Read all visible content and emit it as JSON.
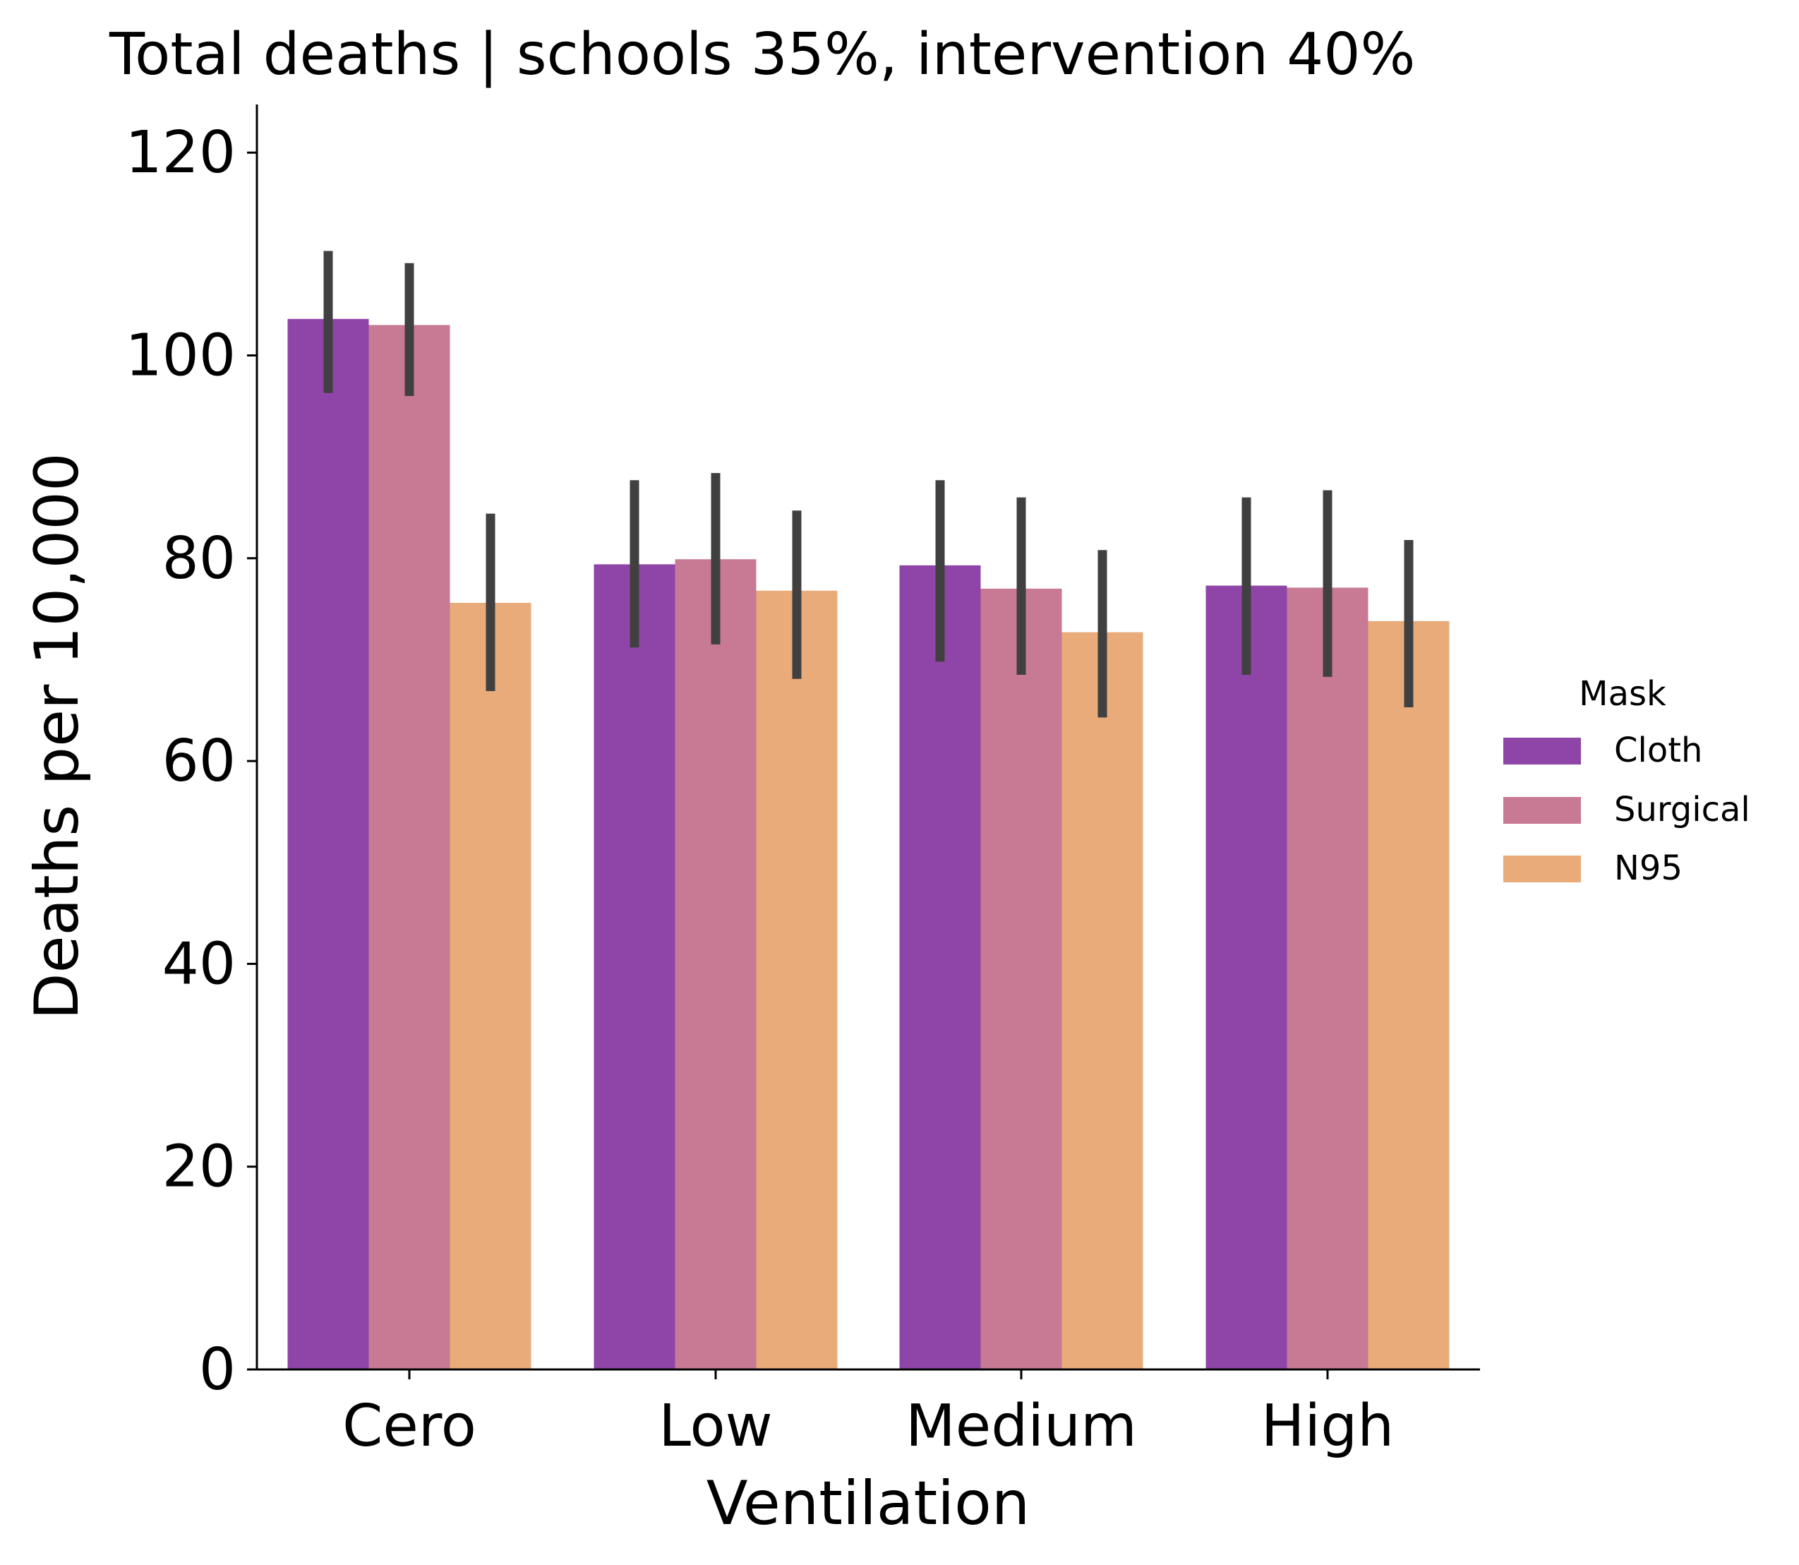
{
  "chart_data": {
    "type": "bar",
    "title": "Total deaths | schools 35%, intervention 40%",
    "xlabel": "Ventilation",
    "ylabel": "Deaths per 10,000",
    "categories": [
      "Cero",
      "Low",
      "Medium",
      "High"
    ],
    "ylim": [
      0,
      125
    ],
    "yticks": [
      0,
      20,
      40,
      60,
      80,
      100,
      120
    ],
    "ytick_labels": [
      "0",
      "20",
      "40",
      "60",
      "80",
      "100",
      "120"
    ],
    "legend": {
      "title": "Mask",
      "placement": "center-right, outside plot"
    },
    "series": [
      {
        "name": "Cloth",
        "color": "#8f45a8",
        "values": [
          103.6,
          79.4,
          79.3,
          77.3
        ],
        "err_low": [
          96.3,
          71.2,
          69.8,
          68.5
        ],
        "err_high": [
          110.3,
          87.7,
          87.7,
          86.0
        ]
      },
      {
        "name": "Surgical",
        "color": "#c87a94",
        "values": [
          103.0,
          79.9,
          77.0,
          77.1
        ],
        "err_low": [
          96.0,
          71.5,
          68.5,
          68.3
        ],
        "err_high": [
          109.1,
          88.4,
          86.0,
          86.7
        ]
      },
      {
        "name": "N95",
        "color": "#e8ab79",
        "values": [
          75.6,
          76.8,
          72.7,
          73.8
        ],
        "err_low": [
          66.9,
          68.1,
          64.3,
          65.3
        ],
        "err_high": [
          84.4,
          84.7,
          80.8,
          81.8
        ]
      }
    ],
    "error_bar_color": "#404040",
    "grid": false
  }
}
